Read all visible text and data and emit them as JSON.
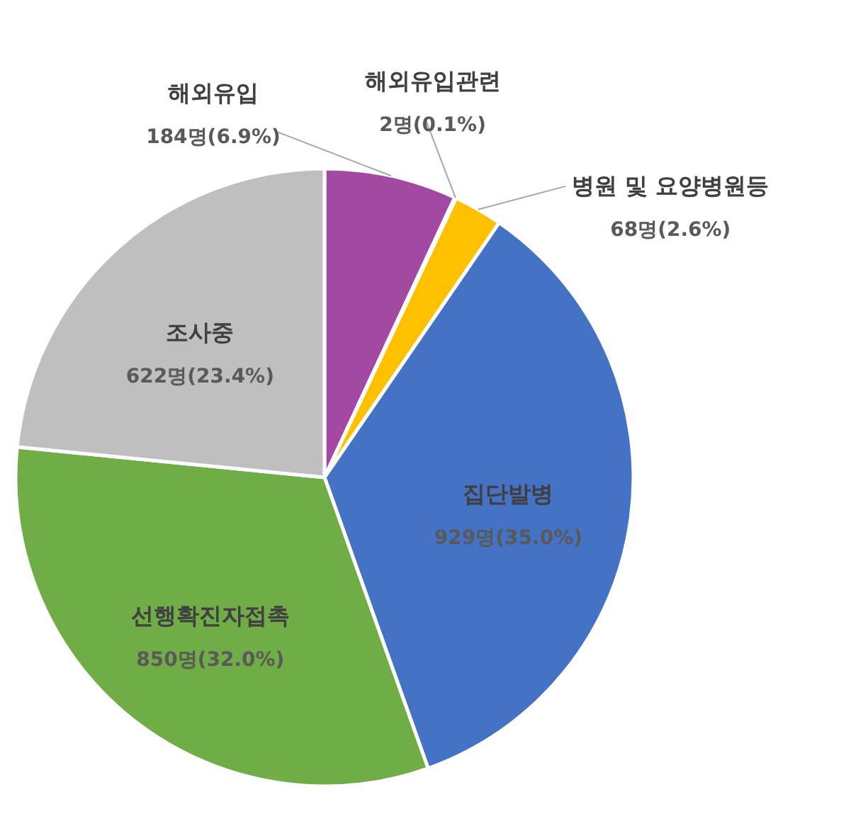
{
  "chart_data": {
    "type": "pie",
    "categories": [
      "해외유입",
      "해외유입관련",
      "병원 및 요양병원등",
      "집단발병",
      "선행확진자접촉",
      "조사중"
    ],
    "values": [
      184,
      2,
      68,
      929,
      850,
      622
    ],
    "value_labels": [
      "184명(6.9%)",
      "2명(0.1%)",
      "68명(2.6%)",
      "929명(35.0%)",
      "850명(32.0%)",
      "622명(23.4%)"
    ],
    "colors": [
      "#a349a4",
      "#ed7d31",
      "#ffc000",
      "#4472c4",
      "#70ad47",
      "#bfbfbf"
    ],
    "legend": false
  }
}
